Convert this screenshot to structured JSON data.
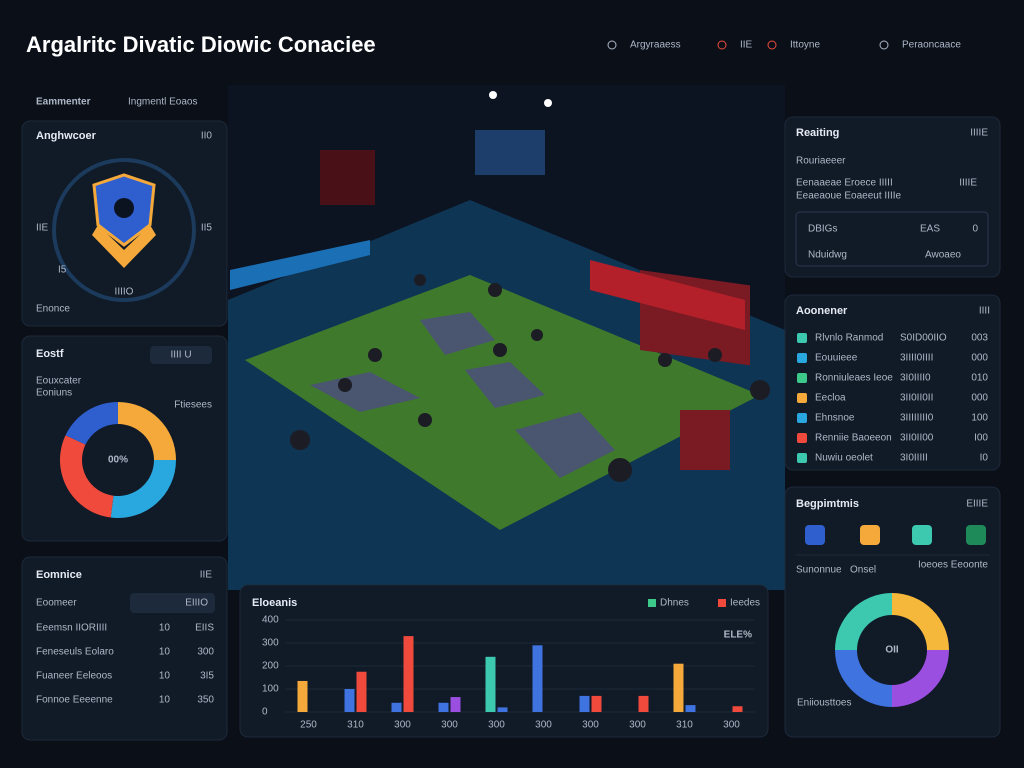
{
  "header": {
    "title": "Argalritc Divatic Diowic Conaciee",
    "nav": [
      "Argyraaess",
      "IIE",
      "Ittoyne",
      "Peraoncaace"
    ]
  },
  "left": {
    "heading": "Eammenter",
    "subheading": "Ingmentl Eoaos",
    "card1": {
      "title": "Anghwcoer",
      "tag": "II0",
      "labels": [
        "IIE",
        "II5",
        "I5",
        "IIIIO"
      ],
      "footer": "Enonce"
    },
    "card2": {
      "title": "Eostf",
      "tag": "IIII U",
      "subtitle": "Eouxcater",
      "note": "Eoniuns",
      "side": "Ftiesees"
    },
    "card3": {
      "title": "Eomnice",
      "tag": "IIE",
      "highlight": [
        "Eoomeer",
        "EIIIO"
      ],
      "rows": [
        [
          "Eeemsn IIORIIII",
          "10",
          "EIIS"
        ],
        [
          "Feneseuls Eolaro",
          "10",
          "300"
        ],
        [
          "Fuaneer Eeleoos",
          "10",
          "3I5"
        ],
        [
          "Fonnoe Eeeenne",
          "10",
          "350"
        ]
      ]
    }
  },
  "right": {
    "card1": {
      "title": "Reaiting",
      "tag": "IIIIE",
      "subtitle": "Rouriaeeer",
      "row": [
        "Eenaaeae Eroece IIIII",
        "IIIIE"
      ],
      "line2": "Eeaeaoue Eoaeeut IIIIe",
      "box": [
        "DBIGs",
        "EAS",
        "0",
        "Nduidwg",
        "Awoaeo"
      ]
    },
    "card2": {
      "title": "Aoonener",
      "tag": "IIII",
      "rows": [
        [
          "Rlvnlo Ranmod",
          "S0ID00IIO",
          "003"
        ],
        [
          "Eouuieee",
          "3IIII0IIII",
          "000"
        ],
        [
          "Ronniuleaes Ieoe",
          "3I0IIII0",
          "010"
        ],
        [
          "Eecloa",
          "3II0II0II",
          "000"
        ],
        [
          "Ehnsnoe",
          "3IIIIIIII0",
          "100"
        ],
        [
          "Renniie Baoeeon",
          "3II0II00",
          "I00"
        ],
        [
          "Nuwiu oeolet",
          "3I0IIIII",
          "I0"
        ]
      ]
    },
    "card3": {
      "title": "Begpimtmis",
      "tag": "EIIIE",
      "side": "Ioeoes Eeoonte",
      "note": "Eniiousttoes"
    }
  },
  "chart_data": [
    {
      "type": "donut",
      "center_label": "00%",
      "values": [
        25,
        27,
        30,
        18
      ],
      "colors": [
        "#f5a93b",
        "#29a8e0",
        "#ef4a3c",
        "#2f5fcf"
      ]
    },
    {
      "type": "bar",
      "title": "Eloeanis",
      "annotation": "ELE%",
      "categories": [
        "250",
        "310",
        "300",
        "300",
        "300",
        "300",
        "300",
        "300",
        "310",
        "300"
      ],
      "ylim": [
        0,
        400
      ],
      "yticks": [
        0,
        100,
        200,
        300,
        400
      ],
      "series": [
        {
          "name": "Dhnes",
          "values": [
            135,
            100,
            40,
            40,
            240,
            290,
            70,
            null,
            210,
            null
          ],
          "colors": [
            "#f5a93b",
            "#3e73e0",
            "#3e73e0",
            "#3e73e0",
            "#3cc9b0",
            "#3e73e0",
            "#3e73e0",
            "#3e73e0",
            "#f5a93b",
            "#3e73e0"
          ]
        },
        {
          "name": "Ieedes",
          "values": [
            null,
            175,
            330,
            65,
            20,
            null,
            70,
            70,
            30,
            25
          ],
          "colors": [
            "#ef4a3c",
            "#ef4a3c",
            "#ef4a3c",
            "#9b4fe0",
            "#3e73e0",
            "#ef4a3c",
            "#ef4a3c",
            "#ef4a3c",
            "#3e73e0",
            "#ef4a3c"
          ]
        }
      ]
    },
    {
      "type": "donut",
      "title": "Sunonnue",
      "subtitle": "Onsel",
      "center_label": "OII",
      "values": [
        25,
        25,
        25,
        25
      ],
      "colors": [
        "#f5b83b",
        "#9b4fe0",
        "#3e73e0",
        "#3cc9b0"
      ]
    }
  ]
}
